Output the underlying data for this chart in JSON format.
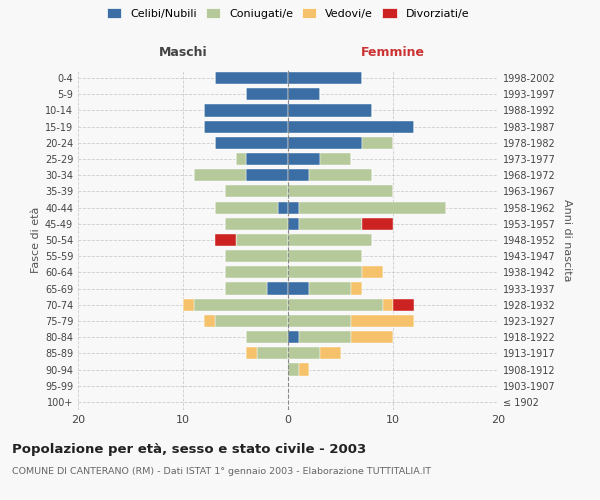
{
  "age_groups": [
    "100+",
    "95-99",
    "90-94",
    "85-89",
    "80-84",
    "75-79",
    "70-74",
    "65-69",
    "60-64",
    "55-59",
    "50-54",
    "45-49",
    "40-44",
    "35-39",
    "30-34",
    "25-29",
    "20-24",
    "15-19",
    "10-14",
    "5-9",
    "0-4"
  ],
  "birth_years": [
    "≤ 1902",
    "1903-1907",
    "1908-1912",
    "1913-1917",
    "1918-1922",
    "1923-1927",
    "1928-1932",
    "1933-1937",
    "1938-1942",
    "1943-1947",
    "1948-1952",
    "1953-1957",
    "1958-1962",
    "1963-1967",
    "1968-1972",
    "1973-1977",
    "1978-1982",
    "1983-1987",
    "1988-1992",
    "1993-1997",
    "1998-2002"
  ],
  "maschi": {
    "celibi": [
      0,
      0,
      0,
      0,
      0,
      0,
      0,
      2,
      0,
      0,
      0,
      0,
      1,
      0,
      4,
      4,
      7,
      8,
      8,
      4,
      7
    ],
    "coniugati": [
      0,
      0,
      0,
      3,
      4,
      7,
      9,
      4,
      6,
      6,
      5,
      6,
      6,
      6,
      5,
      1,
      0,
      0,
      0,
      0,
      0
    ],
    "vedovi": [
      0,
      0,
      0,
      1,
      0,
      1,
      1,
      0,
      0,
      0,
      0,
      0,
      0,
      0,
      0,
      0,
      0,
      0,
      0,
      0,
      0
    ],
    "divorziati": [
      0,
      0,
      0,
      0,
      0,
      0,
      0,
      0,
      0,
      0,
      2,
      0,
      0,
      0,
      0,
      0,
      0,
      0,
      0,
      0,
      0
    ]
  },
  "femmine": {
    "nubili": [
      0,
      0,
      0,
      0,
      1,
      0,
      0,
      2,
      0,
      0,
      0,
      1,
      1,
      0,
      2,
      3,
      7,
      12,
      8,
      3,
      7
    ],
    "coniugate": [
      0,
      0,
      1,
      3,
      5,
      6,
      9,
      4,
      7,
      7,
      8,
      6,
      14,
      10,
      6,
      3,
      3,
      0,
      0,
      0,
      0
    ],
    "vedove": [
      0,
      0,
      1,
      2,
      4,
      6,
      1,
      1,
      2,
      0,
      0,
      0,
      0,
      0,
      0,
      0,
      0,
      0,
      0,
      0,
      0
    ],
    "divorziate": [
      0,
      0,
      0,
      0,
      0,
      0,
      2,
      0,
      0,
      0,
      0,
      3,
      0,
      0,
      0,
      0,
      0,
      0,
      0,
      0,
      0
    ]
  },
  "colors": {
    "celibi": "#3a6ea5",
    "coniugati": "#b5c99a",
    "vedovi": "#f5c26b",
    "divorziati": "#cc2222"
  },
  "title": "Popolazione per età, sesso e stato civile - 2003",
  "subtitle": "COMUNE DI CANTERANO (RM) - Dati ISTAT 1° gennaio 2003 - Elaborazione TUTTITALIA.IT",
  "ylabel_left": "Fasce di età",
  "ylabel_right": "Anni di nascita",
  "xlabel_maschi": "Maschi",
  "xlabel_femmine": "Femmine",
  "xlim": 20,
  "legend_labels": [
    "Celibi/Nubili",
    "Coniugati/e",
    "Vedovi/e",
    "Divorziati/e"
  ],
  "bg_color": "#f8f8f8",
  "bar_height": 0.75,
  "maschi_label_color": "#444444",
  "femmine_label_color": "#cc3333"
}
